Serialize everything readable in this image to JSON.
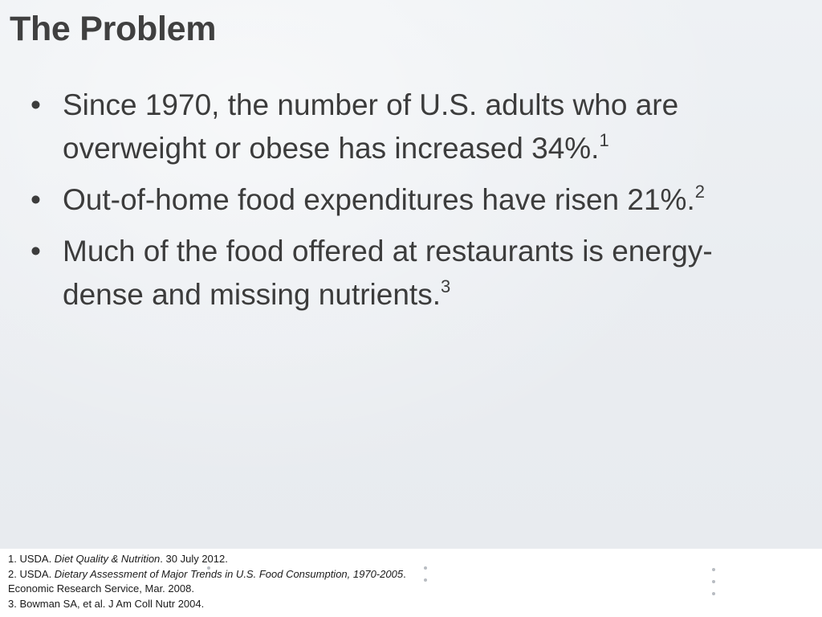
{
  "slide": {
    "title": "The Problem",
    "bullets": [
      {
        "marker": "•",
        "text": "Since 1970, the number of U.S. adults who are overweight or obese has increased 34%.",
        "sup": "1"
      },
      {
        "marker": "•",
        "text": "Out-of-home food expenditures have risen 21%.",
        "sup": "2"
      },
      {
        "marker": "•",
        "text": "Much of the food offered at restaurants is energy-dense and missing nutrients.",
        "sup": "3"
      }
    ]
  },
  "references": [
    {
      "prefix": "1. USDA. ",
      "italic": "Diet Quality & Nutrition",
      "suffix": ". 30 July 2012."
    },
    {
      "prefix": "2. USDA. ",
      "italic": "Dietary Assessment of Major Trends in U.S. Food Consumption, 1970-2005",
      "suffix": "."
    },
    {
      "prefix": "Economic Research Service, Mar. 2008.",
      "italic": "",
      "suffix": ""
    },
    {
      "prefix": "3. Bowman SA, et al. J Am Coll Nutr 2004.",
      "italic": "",
      "suffix": ""
    }
  ],
  "colors": {
    "background": "#eaedf1",
    "text": "#3c3c3c",
    "footer_background": "#ffffff",
    "dot_accent": "#b8bcc2"
  }
}
